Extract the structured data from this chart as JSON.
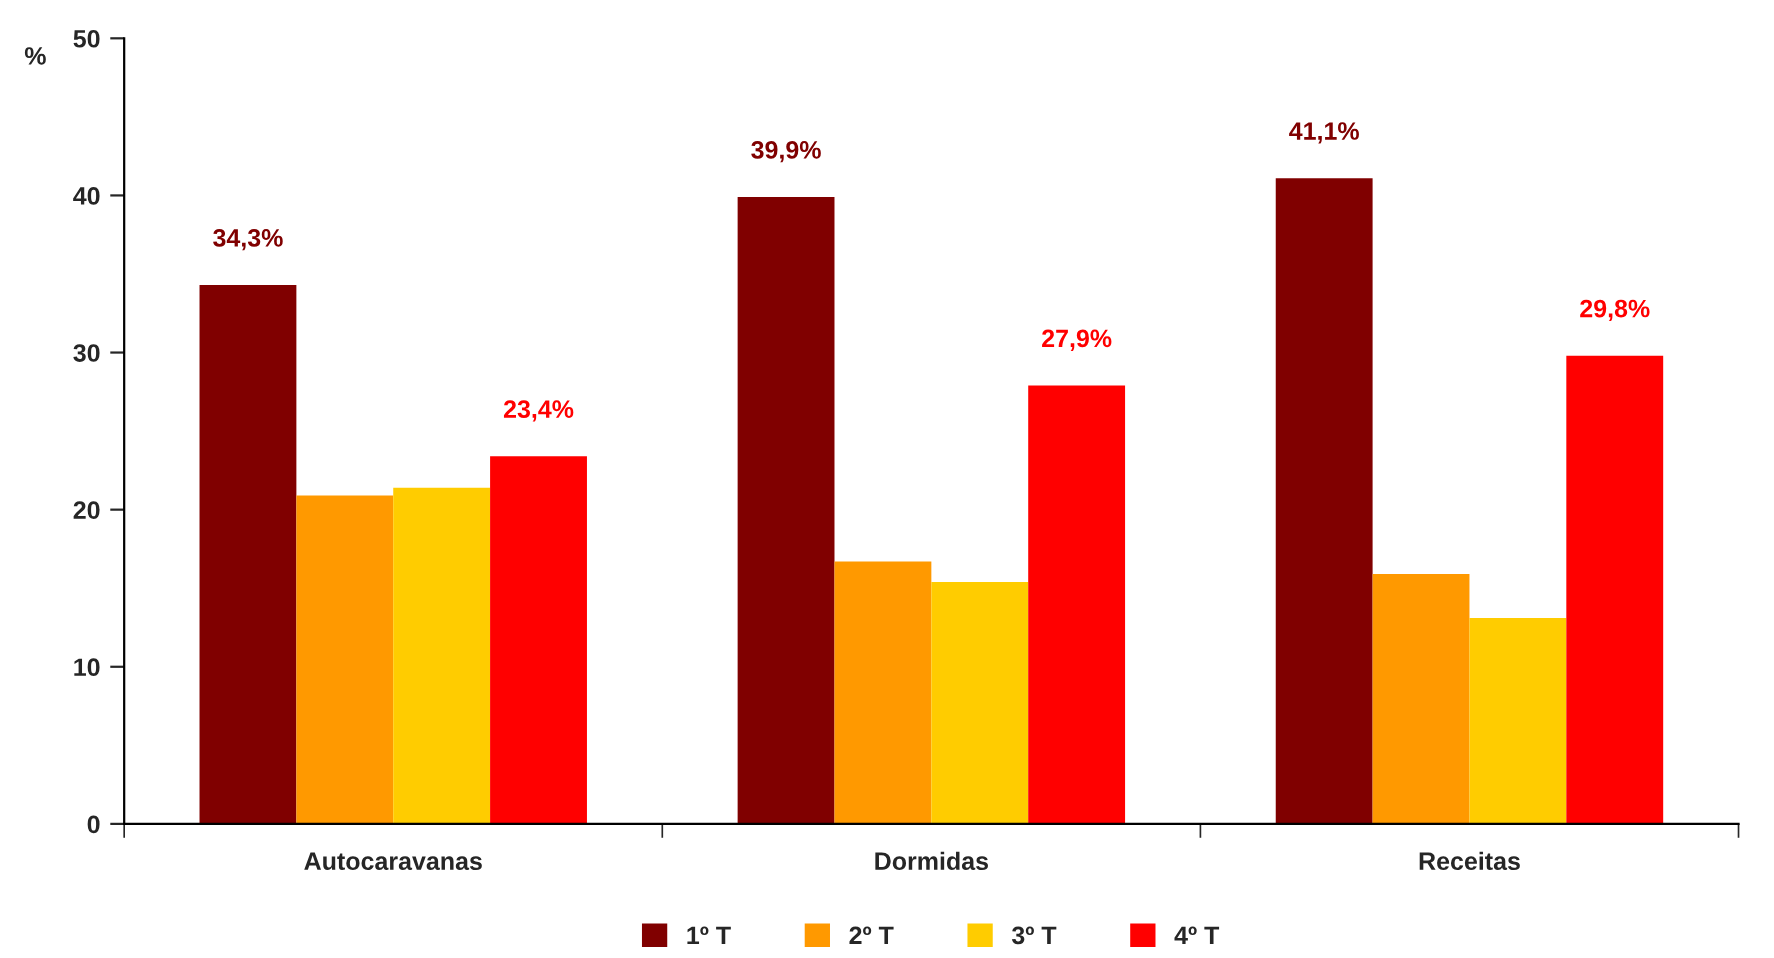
{
  "chart_data": {
    "type": "bar",
    "ylabel": "%",
    "categories": [
      "Autocaravanas",
      "Dormidas",
      "Receitas"
    ],
    "series": [
      {
        "name": "1º T",
        "color": "#800000",
        "values": [
          34.3,
          39.9,
          41.1
        ],
        "value_labels": [
          "34,3%",
          "39,9%",
          "41,1%"
        ]
      },
      {
        "name": "2º T",
        "color": "#ff9900",
        "values": [
          20.9,
          16.7,
          15.9
        ]
      },
      {
        "name": "3º T",
        "color": "#ffcc00",
        "values": [
          21.4,
          15.4,
          13.1
        ]
      },
      {
        "name": "4º T",
        "color": "#ff0000",
        "values": [
          23.4,
          27.9,
          29.8
        ],
        "value_labels": [
          "23,4%",
          "27,9%",
          "29,8%"
        ]
      }
    ],
    "ylim": [
      0,
      50
    ],
    "yticks": [
      0,
      10,
      20,
      30,
      40,
      50
    ],
    "grid": false,
    "legend": "bottom"
  }
}
